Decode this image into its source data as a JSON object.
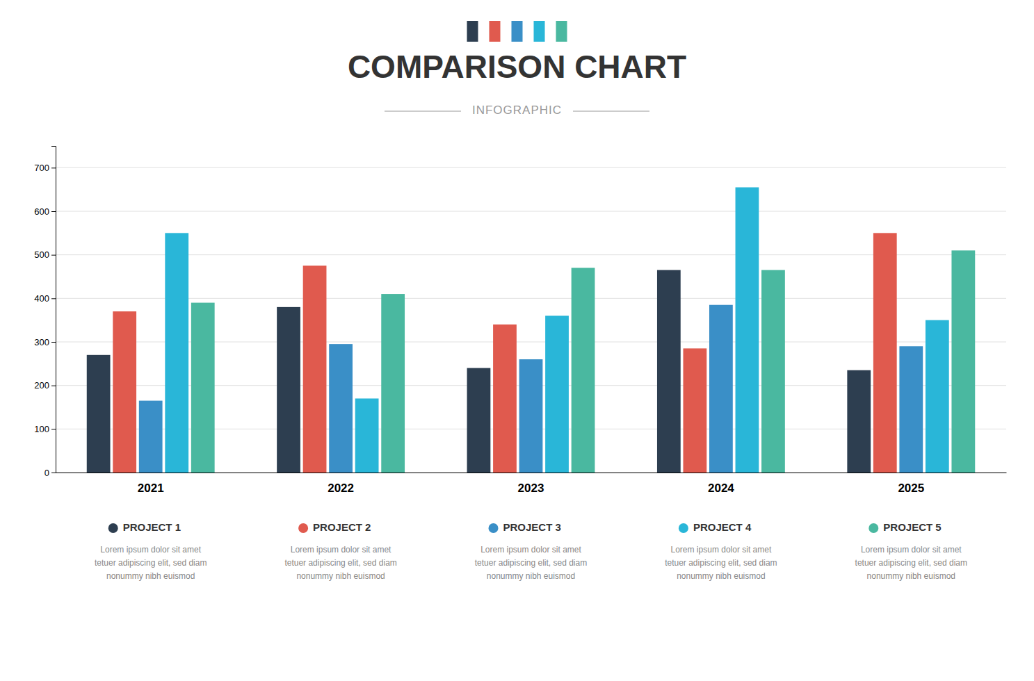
{
  "chart_data": {
    "type": "bar",
    "title": "COMPARISON CHART",
    "subtitle": "INFOGRAPHIC",
    "categories": [
      "2021",
      "2022",
      "2023",
      "2024",
      "2025"
    ],
    "series": [
      {
        "name": "PROJECT 1",
        "color": "#2d3e50",
        "values": [
          270,
          380,
          240,
          465,
          235
        ]
      },
      {
        "name": "PROJECT 2",
        "color": "#e05a4e",
        "values": [
          370,
          475,
          340,
          285,
          550
        ]
      },
      {
        "name": "PROJECT 3",
        "color": "#3a8fc7",
        "values": [
          165,
          295,
          260,
          385,
          290
        ]
      },
      {
        "name": "PROJECT 4",
        "color": "#29b6d8",
        "values": [
          550,
          170,
          360,
          655,
          350
        ]
      },
      {
        "name": "PROJECT 5",
        "color": "#4ab8a0",
        "values": [
          390,
          410,
          470,
          465,
          510
        ]
      }
    ],
    "ylim": [
      0,
      750
    ],
    "yticks": [
      0,
      100,
      200,
      300,
      400,
      500,
      600,
      700
    ],
    "grid": true,
    "legend": "bottom",
    "annotations": [
      "Lorem ipsum dolor sit amet\ntetuer adipiscing elit, sed diam\nnonummy nibh euismod",
      "Lorem ipsum dolor sit amet\ntetuer adipiscing elit, sed diam\nnonummy nibh euismod",
      "Lorem ipsum dolor sit amet\ntetuer adipiscing elit, sed diam\nnonummy nibh euismod",
      "Lorem ipsum dolor sit amet\ntetuer adipiscing elit, sed diam\nnonummy nibh euismod",
      "Lorem ipsum dolor sit amet\ntetuer adipiscing elit, sed diam\nnonummy nibh euismod"
    ]
  }
}
